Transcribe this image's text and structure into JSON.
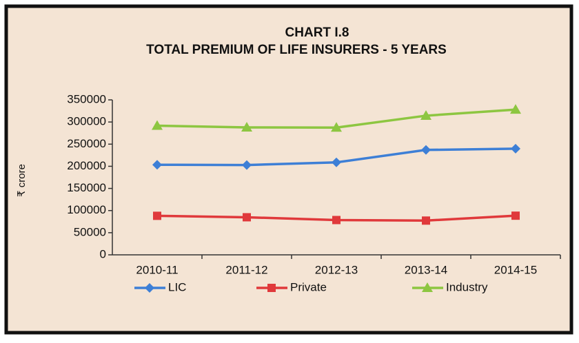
{
  "chart_data": {
    "type": "line",
    "title": "CHART I.8",
    "subtitle": "TOTAL PREMIUM OF LIFE INSURERS - 5 YEARS",
    "y_label": "₹ crore",
    "categories": [
      "2010-11",
      "2011-12",
      "2012-13",
      "2013-14",
      "2014-15"
    ],
    "series": [
      {
        "name": "LIC",
        "color": "#3d7fd6",
        "marker": "diamond",
        "values": [
          203473,
          202889,
          208804,
          236942,
          239668
        ]
      },
      {
        "name": "Private",
        "color": "#e0393b",
        "marker": "square",
        "values": [
          88131,
          84862,
          78599,
          77359,
          88434
        ]
      },
      {
        "name": "Industry",
        "color": "#8dc641",
        "marker": "triangle",
        "values": [
          291605,
          287750,
          287403,
          314301,
          328102
        ]
      }
    ],
    "ylim": [
      0,
      350000
    ],
    "yticks": [
      0,
      50000,
      100000,
      150000,
      200000,
      250000,
      300000,
      350000
    ],
    "grid": false,
    "legend": "bottom"
  }
}
